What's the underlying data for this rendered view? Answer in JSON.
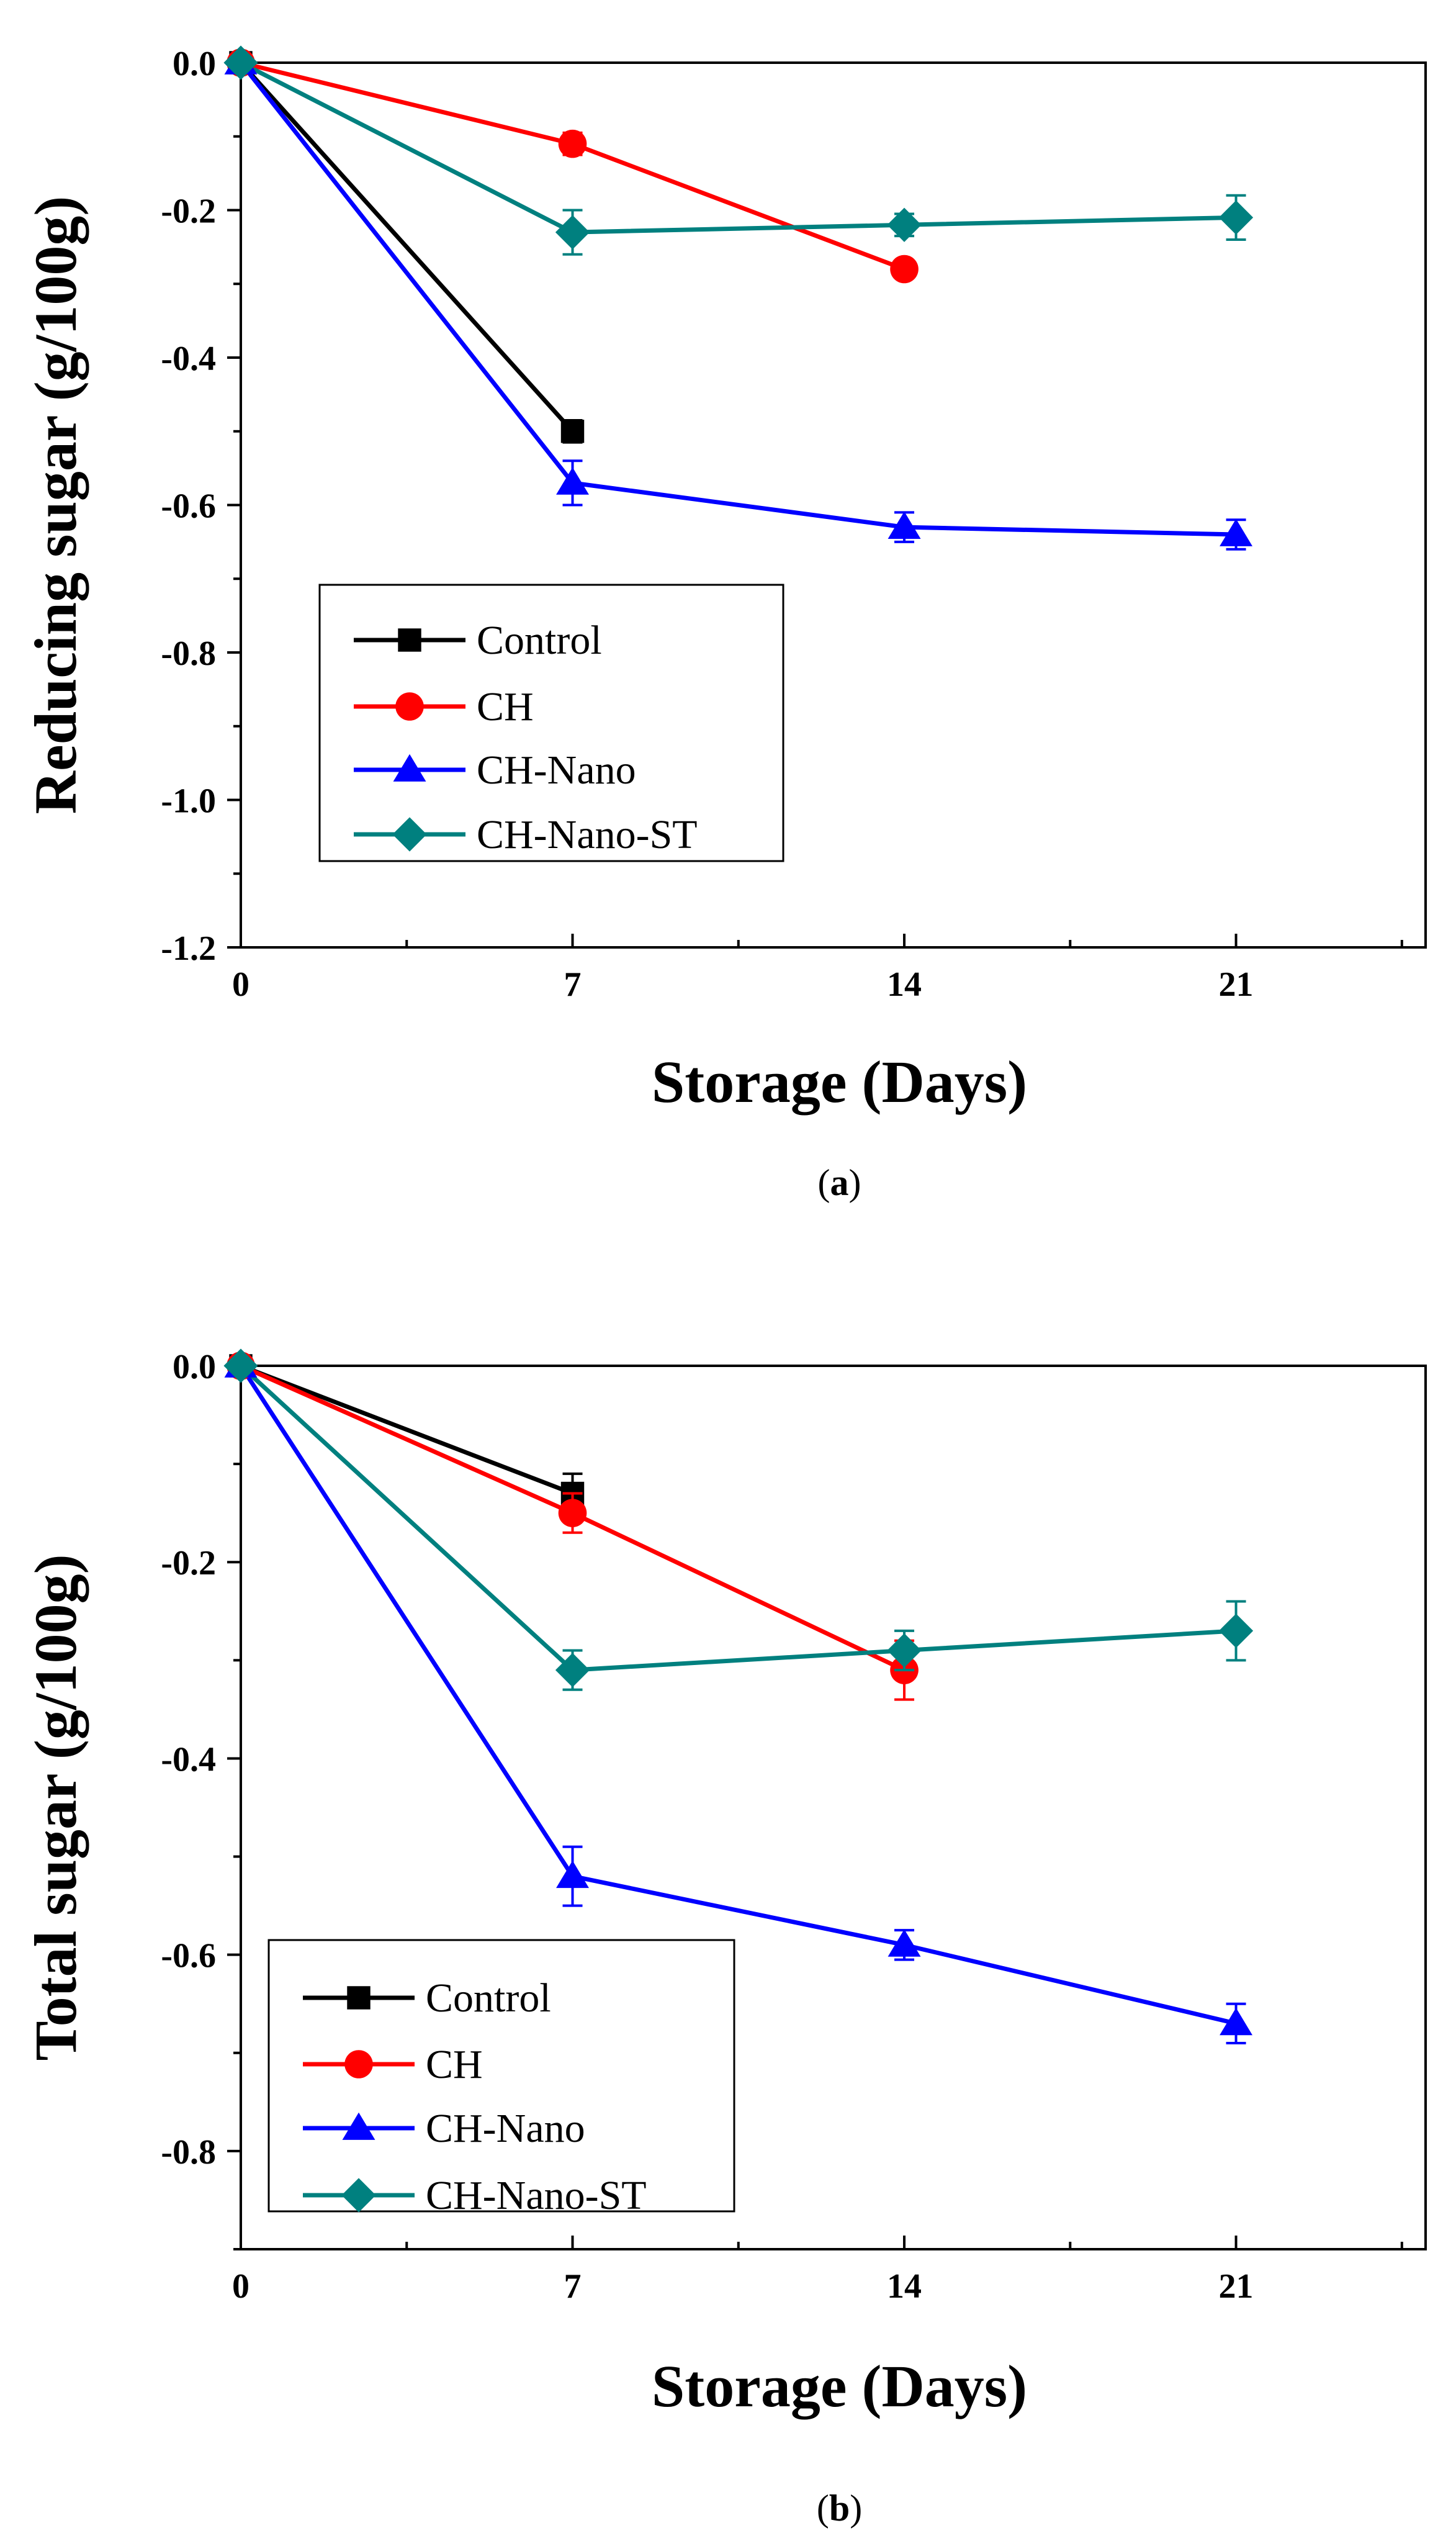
{
  "chart_data": [
    {
      "type": "line",
      "panel_label": "a",
      "xlabel": "Storage (Days)",
      "ylabel": "Reducing sugar  (g/100g)",
      "xlim": [
        0,
        25
      ],
      "ylim": [
        -1.2,
        0.0
      ],
      "x_ticks": [
        0,
        7,
        14,
        21
      ],
      "x_tick_labels": [
        "0",
        "7",
        "14",
        "21"
      ],
      "y_ticks": [
        0.0,
        -0.2,
        -0.4,
        -0.6,
        -0.8,
        -1.0,
        -1.2
      ],
      "y_tick_labels": [
        "0.0",
        "-0.2",
        "-0.4",
        "-0.6",
        "-0.8",
        "-1.0",
        "-1.2"
      ],
      "legend_position": "lower-left",
      "series": [
        {
          "name": "Control",
          "color": "#000000",
          "marker": "square",
          "x": [
            0,
            7
          ],
          "values": [
            0.0,
            -0.5
          ],
          "errors": [
            0,
            0.015
          ]
        },
        {
          "name": "CH",
          "color": "#ff0000",
          "marker": "circle",
          "x": [
            0,
            7,
            14
          ],
          "values": [
            0.0,
            -0.11,
            -0.28
          ],
          "errors": [
            0,
            0.015,
            0.01
          ]
        },
        {
          "name": "CH-Nano",
          "color": "#0000ff",
          "marker": "triangle",
          "x": [
            0,
            7,
            14,
            21
          ],
          "values": [
            0.0,
            -0.57,
            -0.63,
            -0.64
          ],
          "errors": [
            0,
            0.03,
            0.02,
            0.02
          ]
        },
        {
          "name": "CH-Nano-ST",
          "color": "#00807f",
          "marker": "diamond",
          "x": [
            0,
            7,
            14,
            21
          ],
          "values": [
            0.0,
            -0.23,
            -0.22,
            -0.21
          ],
          "errors": [
            0,
            0.03,
            0.015,
            0.03
          ]
        }
      ]
    },
    {
      "type": "line",
      "panel_label": "b",
      "xlabel": "Storage (Days)",
      "ylabel": "Total sugar  (g/100g)",
      "xlim": [
        0,
        25
      ],
      "ylim": [
        -0.9,
        0.0
      ],
      "x_ticks": [
        0,
        7,
        14,
        21
      ],
      "x_tick_labels": [
        "0",
        "7",
        "14",
        "21"
      ],
      "y_ticks": [
        0.0,
        -0.2,
        -0.4,
        -0.6,
        -0.8
      ],
      "y_tick_labels": [
        "0.0",
        "-0.2",
        "-0.4",
        "-0.6",
        "-0.8"
      ],
      "legend_position": "lower-left",
      "series": [
        {
          "name": "Control",
          "color": "#000000",
          "marker": "square",
          "x": [
            0,
            7
          ],
          "values": [
            0.0,
            -0.13
          ],
          "errors": [
            0,
            0.02
          ]
        },
        {
          "name": "CH",
          "color": "#ff0000",
          "marker": "circle",
          "x": [
            0,
            7,
            14
          ],
          "values": [
            0.0,
            -0.15,
            -0.31
          ],
          "errors": [
            0,
            0.02,
            0.03
          ]
        },
        {
          "name": "CH-Nano",
          "color": "#0000ff",
          "marker": "triangle",
          "x": [
            0,
            7,
            14,
            21
          ],
          "values": [
            0.0,
            -0.52,
            -0.59,
            -0.67
          ],
          "errors": [
            0,
            0.03,
            0.015,
            0.02
          ]
        },
        {
          "name": "CH-Nano-ST",
          "color": "#00807f",
          "marker": "diamond",
          "x": [
            0,
            7,
            14,
            21
          ],
          "values": [
            0.0,
            -0.31,
            -0.29,
            -0.27
          ],
          "errors": [
            0,
            0.02,
            0.02,
            0.03
          ]
        }
      ]
    }
  ]
}
